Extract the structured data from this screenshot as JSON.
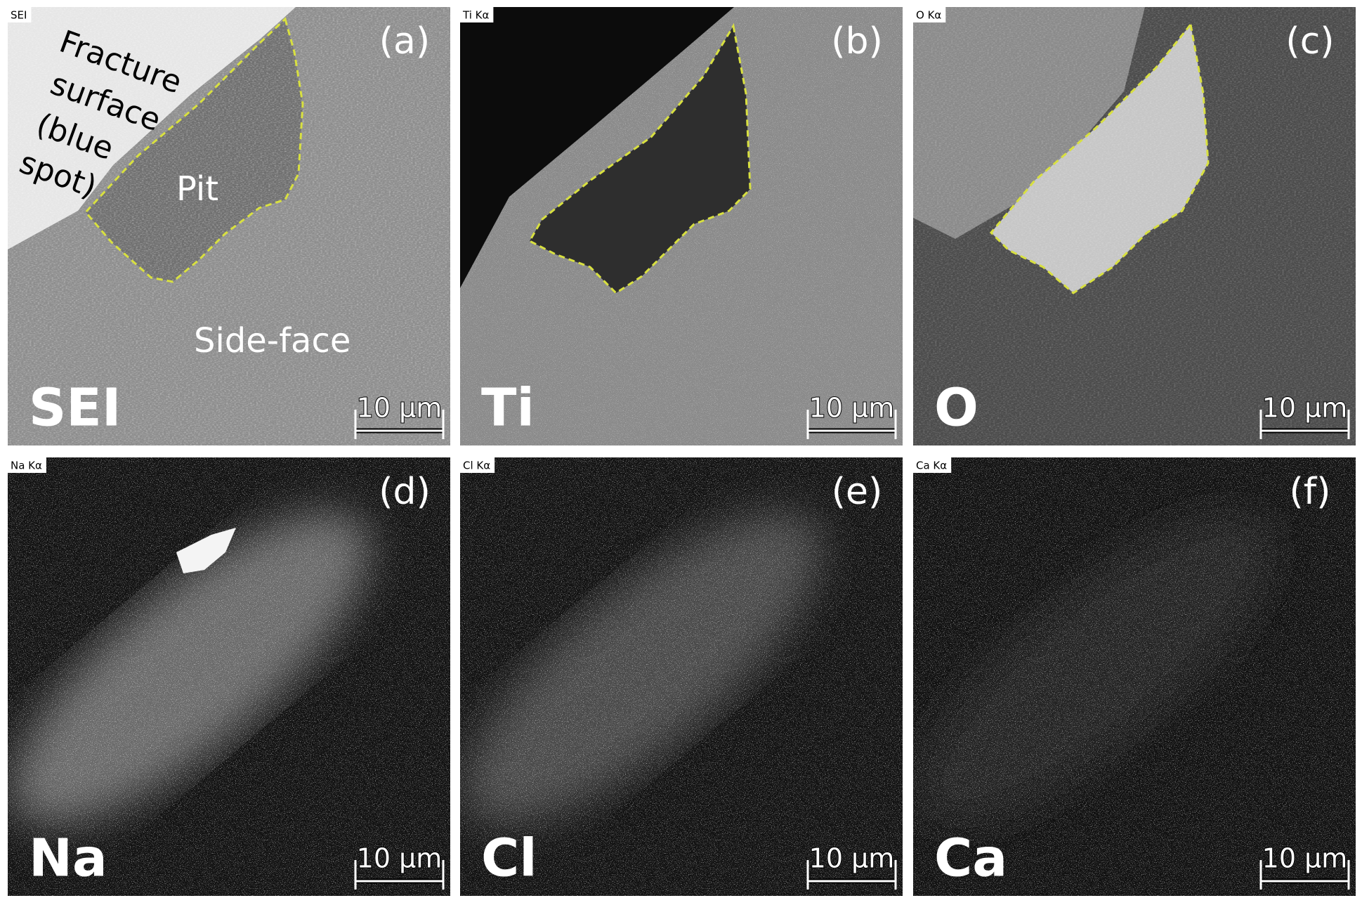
{
  "panels": [
    {
      "tag": "SEI",
      "letter": "(a)",
      "element": "SEI",
      "scale_bar": "10 µm"
    },
    {
      "tag": "Ti Kα",
      "letter": "(b)",
      "element": "Ti",
      "scale_bar": "10 µm"
    },
    {
      "tag": "O Kα",
      "letter": "(c)",
      "element": "O",
      "scale_bar": "10 µm"
    },
    {
      "tag": "Na Kα",
      "letter": "(d)",
      "element": "Na",
      "scale_bar": "10 µm"
    },
    {
      "tag": "Cl Kα",
      "letter": "(e)",
      "element": "Cl",
      "scale_bar": "10 µm"
    },
    {
      "tag": "Ca Kα",
      "letter": "(f)",
      "element": "Ca",
      "scale_bar": "10 µm"
    }
  ],
  "annotations": {
    "fracture_surface": [
      "Fracture",
      "surface",
      "(blue",
      "spot)"
    ],
    "pit": "Pit",
    "side_face": "Side-face"
  }
}
